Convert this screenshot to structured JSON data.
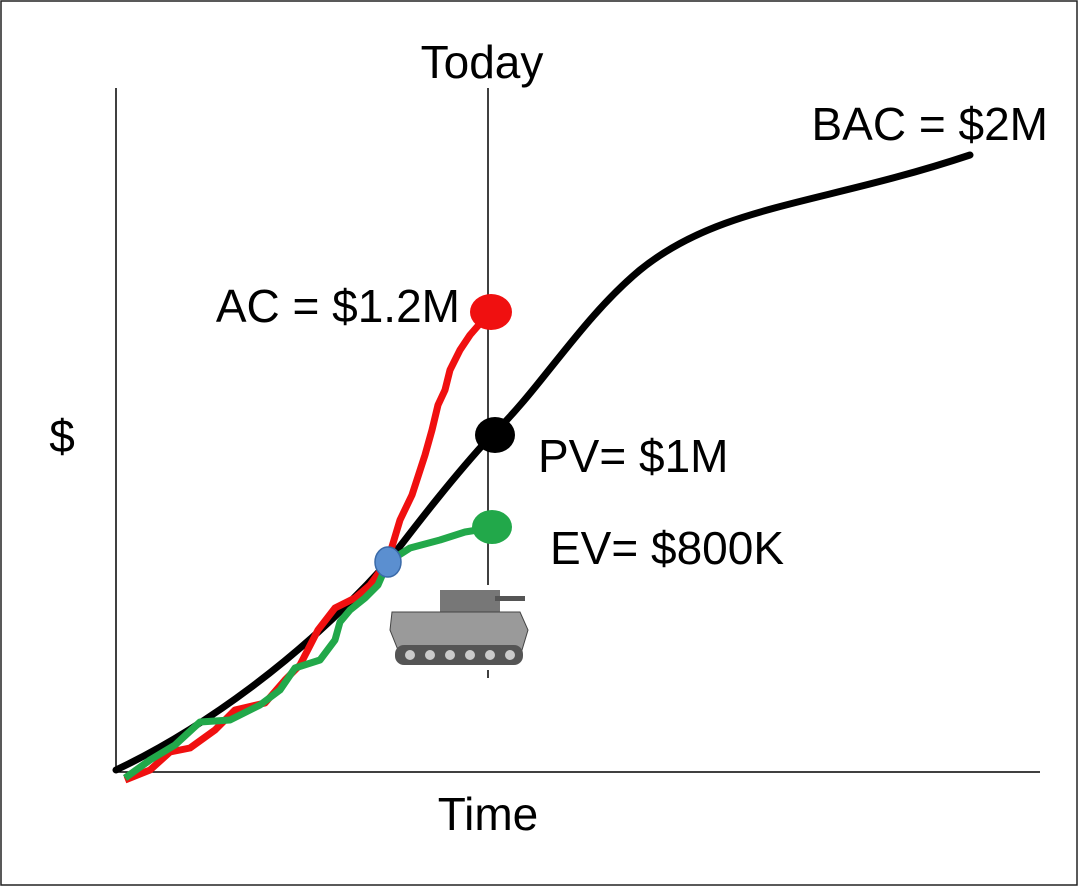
{
  "diagram": {
    "top_label": "Today",
    "y_label": "$",
    "x_label": "Time",
    "annotations": {
      "bac": "BAC = $2M",
      "ac": "AC = $1.2M",
      "pv": "PV= $1M",
      "ev": "EV= $800K"
    }
  }
}
